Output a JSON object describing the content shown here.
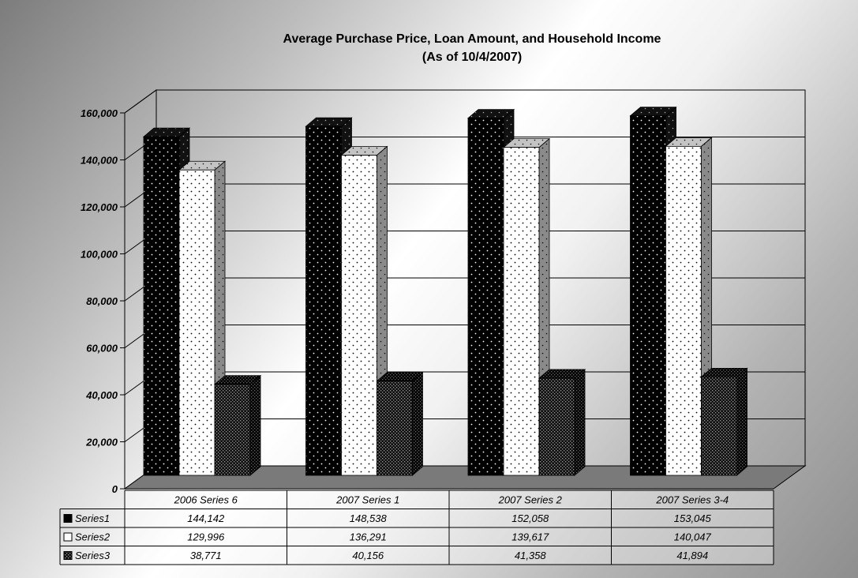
{
  "chart_data": {
    "type": "bar",
    "title": "Average Purchase Price,  Loan Amount, and Household Income",
    "subtitle": "(As of 10/4/2007)",
    "categories": [
      "2006 Series 6",
      "2007 Series 1",
      "2007 Series 2",
      "2007 Series 3-4"
    ],
    "series": [
      {
        "name": "Series1",
        "values": [
          144142,
          148538,
          152058,
          153045
        ],
        "display": [
          "144,142",
          "148,538",
          "152,058",
          "153,045"
        ],
        "pattern": "dots-on-black"
      },
      {
        "name": "Series2",
        "values": [
          129996,
          136291,
          139617,
          140047
        ],
        "display": [
          "129,996",
          "136,291",
          "139,617",
          "140,047"
        ],
        "pattern": "dots-on-white"
      },
      {
        "name": "Series3",
        "values": [
          38771,
          40156,
          41358,
          41894
        ],
        "display": [
          "38,771",
          "40,156",
          "41,358",
          "41,894"
        ],
        "pattern": "checker"
      }
    ],
    "ylim": [
      0,
      160000
    ],
    "yticks": [
      0,
      20000,
      40000,
      60000,
      80000,
      100000,
      120000,
      140000,
      160000
    ],
    "ytick_labels": [
      "0",
      "20,000",
      "40,000",
      "60,000",
      "80,000",
      "100,000",
      "120,000",
      "140,000",
      "160,000"
    ],
    "grid": true,
    "legend": "data-table-below",
    "xlabel": "",
    "ylabel": "",
    "colors": {
      "series1": "#000000",
      "series2": "#ffffff",
      "series3": "#1a1a1a",
      "floor": "#7a7a7a",
      "grid": "#000000"
    }
  }
}
